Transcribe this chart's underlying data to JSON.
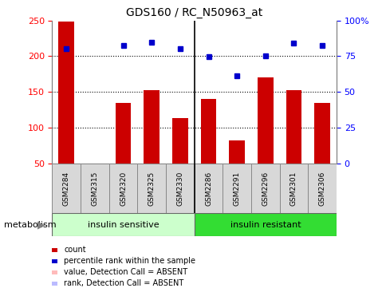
{
  "title": "GDS160 / RC_N50963_at",
  "samples": [
    "GSM2284",
    "GSM2315",
    "GSM2320",
    "GSM2325",
    "GSM2330",
    "GSM2286",
    "GSM2291",
    "GSM2296",
    "GSM2301",
    "GSM2306"
  ],
  "bar_values": [
    248,
    50,
    135,
    152,
    114,
    140,
    82,
    170,
    152,
    135
  ],
  "dot_values": [
    210,
    null,
    215,
    219,
    210,
    199,
    173,
    200,
    218,
    215
  ],
  "ylim_left": [
    50,
    250
  ],
  "ylim_right": [
    0,
    100
  ],
  "yticks_left": [
    50,
    100,
    150,
    200,
    250
  ],
  "yticks_right": [
    0,
    25,
    50,
    75,
    100
  ],
  "ytick_labels_right": [
    "0",
    "25",
    "50",
    "75",
    "100%"
  ],
  "bar_color": "#cc0000",
  "dot_color": "#0000cc",
  "group1_label": "insulin sensitive",
  "group2_label": "insulin resistant",
  "group1_color": "#ccffcc",
  "group2_color": "#33dd33",
  "n_group1": 5,
  "n_group2": 5,
  "metabolism_label": "metabolism",
  "legend_items": [
    {
      "label": "count",
      "color": "#cc0000"
    },
    {
      "label": "percentile rank within the sample",
      "color": "#0000cc"
    },
    {
      "label": "value, Detection Call = ABSENT",
      "color": "#ffbbbb"
    },
    {
      "label": "rank, Detection Call = ABSENT",
      "color": "#bbbbff"
    }
  ]
}
